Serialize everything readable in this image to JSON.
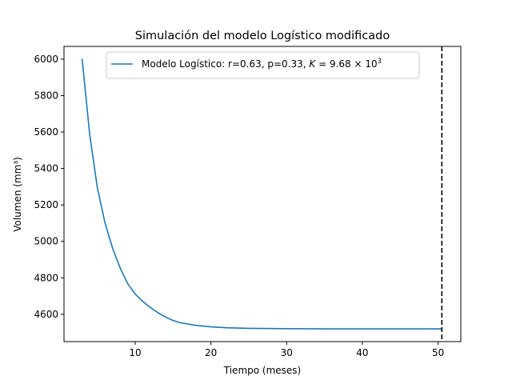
{
  "chart_data": {
    "type": "line",
    "title": "Simulación del modelo Logístico modificado",
    "xlabel": "Tiempo (meses)",
    "ylabel": "Volumen (mm³)",
    "xlim": [
      0.6,
      53.0
    ],
    "ylim": [
      4450,
      6070
    ],
    "xticks": [
      10,
      20,
      30,
      40,
      50
    ],
    "yticks": [
      4600,
      4800,
      5000,
      5200,
      5400,
      5600,
      5800,
      6000
    ],
    "grid": false,
    "legend_position": "top-center",
    "series": [
      {
        "name": "Modelo Logístico: r=0.63, p=0.33, K = 9.68 × 10³",
        "legend_main": "Modelo Logístico: r=0.63, p=0.33, ",
        "legend_k": "K",
        "legend_eq": " = 9.68 × 10",
        "legend_exp": "3",
        "color": "#1f77b4",
        "x": [
          3,
          4,
          5,
          6,
          7,
          8,
          9,
          10,
          11,
          12,
          13,
          14,
          15,
          16,
          18,
          20,
          22,
          25,
          30,
          35,
          40,
          45,
          50.5
        ],
        "y": [
          6000,
          5584,
          5297,
          5104,
          4964,
          4856,
          4769,
          4711,
          4671,
          4637,
          4609,
          4585,
          4566,
          4553,
          4539,
          4531,
          4526,
          4523,
          4521,
          4520,
          4520,
          4520,
          4520
        ]
      }
    ],
    "vline": {
      "x": 50.5,
      "style": "dashed",
      "color": "#000000"
    }
  }
}
